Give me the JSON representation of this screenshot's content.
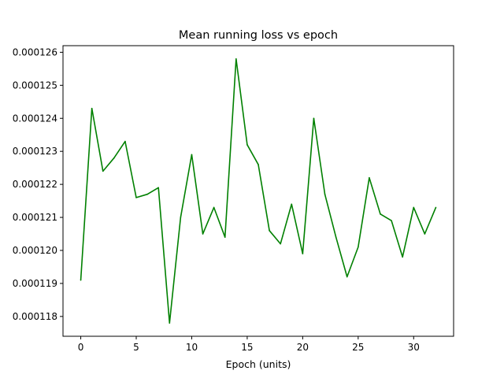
{
  "chart_data": {
    "type": "line",
    "title": "Mean running loss vs epoch",
    "xlabel": "Epoch (units)",
    "ylabel": "",
    "grid": false,
    "legend": false,
    "xlim": [
      -1.6,
      33.6
    ],
    "ylim": [
      0.0001174,
      0.0001262
    ],
    "x_ticks": [
      0,
      5,
      10,
      15,
      20,
      25,
      30
    ],
    "y_ticks": [
      0.000118,
      0.000119,
      0.00012,
      0.000121,
      0.000122,
      0.000123,
      0.000124,
      0.000125,
      0.000126
    ],
    "x_tick_labels": [
      "0",
      "5",
      "10",
      "15",
      "20",
      "25",
      "30"
    ],
    "y_tick_labels": [
      "0.000118",
      "0.000119",
      "0.000120",
      "0.000121",
      "0.000122",
      "0.000123",
      "0.000124",
      "0.000125",
      "0.000126"
    ],
    "series": [
      {
        "color": "#008000",
        "x": [
          0,
          1,
          2,
          3,
          4,
          5,
          6,
          7,
          8,
          9,
          10,
          11,
          12,
          13,
          14,
          15,
          16,
          17,
          18,
          19,
          20,
          21,
          22,
          23,
          24,
          25,
          26,
          27,
          28,
          29,
          30,
          31,
          32
        ],
        "y": [
          0.0001191,
          0.0001243,
          0.0001224,
          0.0001228,
          0.0001233,
          0.0001216,
          0.0001217,
          0.0001219,
          0.0001178,
          0.000121,
          0.0001229,
          0.0001205,
          0.0001213,
          0.0001204,
          0.0001258,
          0.0001232,
          0.0001226,
          0.0001206,
          0.0001202,
          0.0001214,
          0.0001199,
          0.000124,
          0.0001217,
          0.0001204,
          0.0001192,
          0.0001201,
          0.0001222,
          0.0001211,
          0.0001209,
          0.0001198,
          0.0001213,
          0.0001205,
          0.0001213
        ]
      }
    ]
  }
}
